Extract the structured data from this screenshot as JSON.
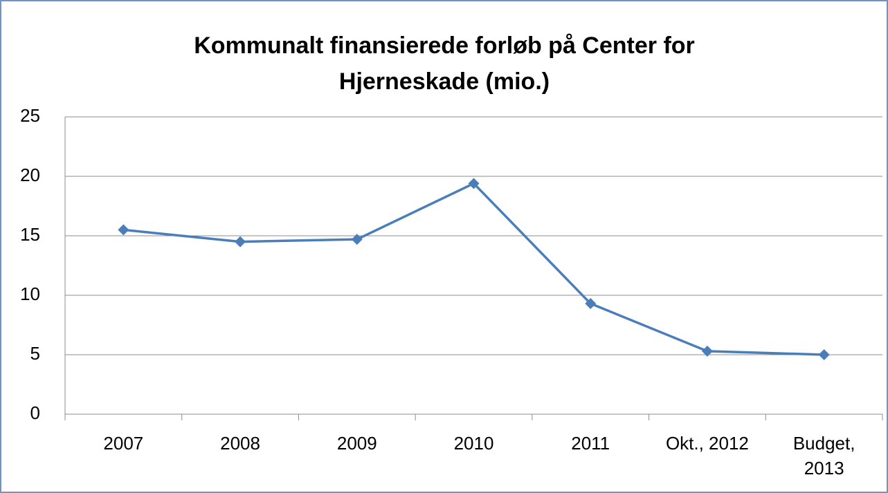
{
  "chart_data": {
    "type": "line",
    "title": "Kommunalt finansierede forløb på Center for Hjerneskade (mio.)",
    "categories": [
      "2007",
      "2008",
      "2009",
      "2010",
      "2011",
      "Okt., 2012",
      "Budget, 2013"
    ],
    "series": [
      {
        "name": "Kommunalt finansierede forløb",
        "color": "#4a7ebb",
        "values": [
          15.5,
          14.5,
          14.7,
          19.4,
          9.3,
          5.3,
          5.0
        ]
      }
    ],
    "ylim": [
      0,
      25
    ],
    "yticks": [
      0,
      5,
      10,
      15,
      20,
      25
    ],
    "grid": true,
    "legend": false
  }
}
